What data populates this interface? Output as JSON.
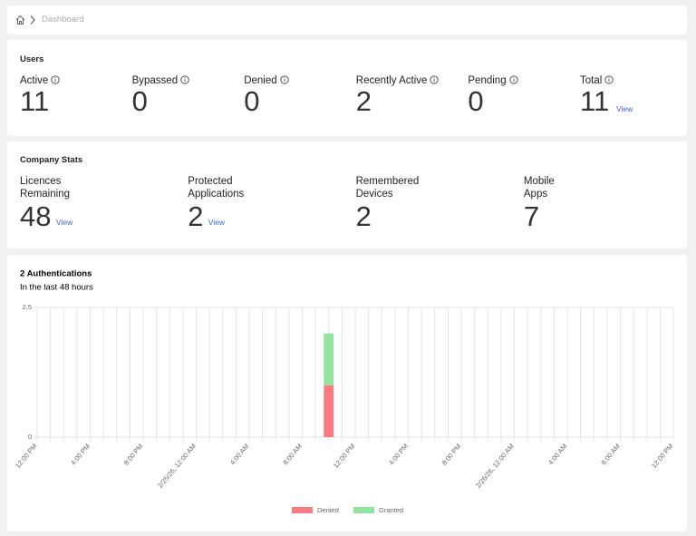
{
  "breadcrumb": {
    "current": "Dashboard"
  },
  "users": {
    "title": "Users",
    "stats": [
      {
        "label": "Active",
        "value": 11
      },
      {
        "label": "Bypassed",
        "value": 0
      },
      {
        "label": "Denied",
        "value": 0
      },
      {
        "label": "Recently Active",
        "value": 2
      },
      {
        "label": "Pending",
        "value": 0
      },
      {
        "label": "Total",
        "value": 11,
        "link": "View"
      }
    ]
  },
  "company_stats": {
    "title": "Company Stats",
    "stats": [
      {
        "label": "Licences Remaining",
        "value": 48,
        "link": "View"
      },
      {
        "label": "Protected Applications",
        "value": 2,
        "link": "View"
      },
      {
        "label": "Remembered Devices",
        "value": 2
      },
      {
        "label": "Mobile Apps",
        "value": 7
      }
    ]
  },
  "chart_data": {
    "type": "bar",
    "stacked": true,
    "title": "2 Authentications",
    "subtitle": "In the last 48 hours",
    "categories": [
      "12:00 PM",
      null,
      null,
      null,
      "4:00 PM",
      null,
      null,
      null,
      "8:00 PM",
      null,
      null,
      null,
      "2/25/26, 12:00 AM",
      null,
      null,
      null,
      "4:00 AM",
      null,
      null,
      null,
      "8:00 AM",
      null,
      null,
      null,
      "12:00 PM",
      null,
      null,
      null,
      "4:00 PM",
      null,
      null,
      null,
      "8:00 PM",
      null,
      null,
      null,
      "2/26/26, 12:00 AM",
      null,
      null,
      null,
      "4:00 AM",
      null,
      null,
      null,
      "8:00 AM",
      null,
      null,
      null,
      "12:00 PM"
    ],
    "series": [
      {
        "name": "Denied",
        "color": "#f77c82",
        "values": [
          0,
          0,
          0,
          0,
          0,
          0,
          0,
          0,
          0,
          0,
          0,
          0,
          0,
          0,
          0,
          0,
          0,
          0,
          0,
          0,
          0,
          0,
          1,
          0,
          0,
          0,
          0,
          0,
          0,
          0,
          0,
          0,
          0,
          0,
          0,
          0,
          0,
          0,
          0,
          0,
          0,
          0,
          0,
          0,
          0,
          0,
          0,
          0,
          0
        ]
      },
      {
        "name": "Granted",
        "color": "#93e49e",
        "values": [
          0,
          0,
          0,
          0,
          0,
          0,
          0,
          0,
          0,
          0,
          0,
          0,
          0,
          0,
          0,
          0,
          0,
          0,
          0,
          0,
          0,
          0,
          1,
          0,
          0,
          0,
          0,
          0,
          0,
          0,
          0,
          0,
          0,
          0,
          0,
          0,
          0,
          0,
          0,
          0,
          0,
          0,
          0,
          0,
          0,
          0,
          0,
          0,
          0
        ]
      }
    ],
    "ylim": [
      0,
      2.5
    ],
    "yticks": [
      0,
      2.5
    ],
    "grid": true,
    "legend": "bottom"
  }
}
